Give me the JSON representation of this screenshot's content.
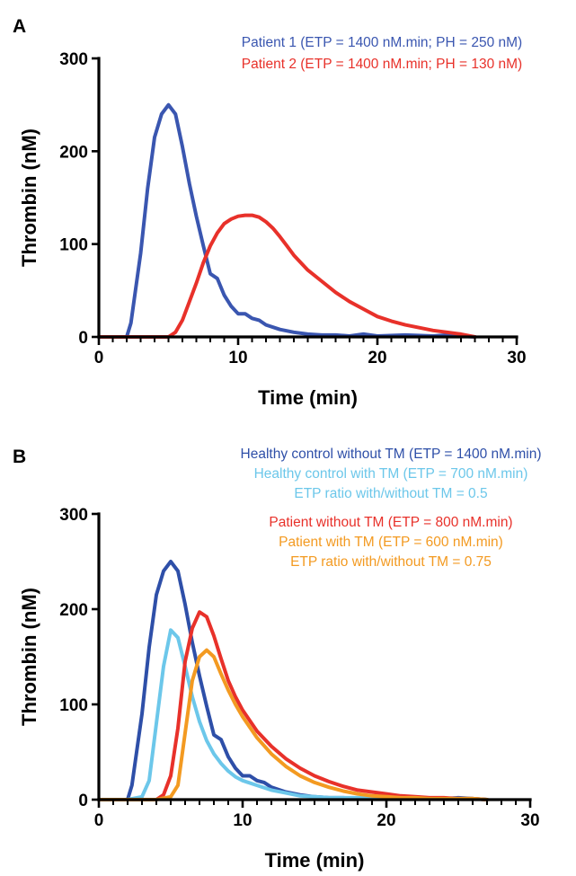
{
  "chart_data": [
    {
      "panel": "A",
      "type": "line",
      "xlabel": "Time (min)",
      "ylabel": "Thrombin (nM)",
      "xlim": [
        0,
        30
      ],
      "ylim": [
        0,
        300
      ],
      "xticks": [
        0,
        10,
        20,
        30
      ],
      "yticks": [
        0,
        100,
        200,
        300
      ],
      "legend": {
        "placement": "top-right",
        "entries": [
          {
            "text": "Patient 1 (ETP = 1400 nM.min; PH = 250 nM)",
            "color": "#3a56b0"
          },
          {
            "text": "Patient 2 (ETP = 1400 nM.min; PH = 130 nM)",
            "color": "#e8312a"
          }
        ]
      },
      "series": [
        {
          "color": "#3a56b0",
          "x": [
            0,
            1,
            2,
            2.3,
            3,
            3.5,
            4,
            4.5,
            5,
            5.5,
            6,
            6.5,
            7,
            7.5,
            8,
            8.5,
            9,
            9.5,
            10,
            10.5,
            11,
            11.5,
            12,
            13,
            14,
            15,
            16,
            17,
            18,
            19,
            20,
            22,
            24,
            25,
            26,
            27
          ],
          "y": [
            0,
            0,
            0,
            15,
            90,
            160,
            215,
            240,
            250,
            240,
            205,
            165,
            130,
            98,
            68,
            63,
            45,
            33,
            25,
            25,
            20,
            18,
            13,
            8,
            5,
            3,
            2,
            2,
            1,
            3,
            1,
            2,
            1,
            2,
            1,
            0
          ]
        },
        {
          "color": "#e8312a",
          "x": [
            0,
            2,
            4,
            5,
            5.5,
            6,
            6.5,
            7,
            7.5,
            8,
            8.5,
            9,
            9.5,
            10,
            10.5,
            11,
            11.5,
            12,
            12.5,
            13,
            13.5,
            14,
            15,
            16,
            17,
            18,
            19,
            20,
            21,
            22,
            23,
            24,
            25,
            26,
            27
          ],
          "y": [
            0,
            0,
            0,
            0,
            5,
            18,
            38,
            58,
            80,
            98,
            112,
            122,
            127,
            130,
            131,
            131,
            129,
            124,
            117,
            108,
            98,
            88,
            72,
            60,
            48,
            38,
            30,
            22,
            17,
            13,
            10,
            7,
            5,
            3,
            0
          ]
        }
      ]
    },
    {
      "panel": "B",
      "type": "line",
      "xlabel": "Time (min)",
      "ylabel": "Thrombin (nM)",
      "xlim": [
        0,
        30
      ],
      "ylim": [
        0,
        300
      ],
      "xticks": [
        0,
        10,
        20,
        30
      ],
      "yticks": [
        0,
        100,
        200,
        300
      ],
      "legend": {
        "placement": "top-right",
        "entries": [
          {
            "text": "Healthy control without TM (ETP = 1400 nM.min)",
            "color": "#2e4fa8"
          },
          {
            "text": "Healthy control with TM (ETP = 700 nM.min)",
            "color": "#6cc7ea"
          },
          {
            "text": "ETP ratio with/without TM = 0.5",
            "color": "#6cc7ea"
          },
          {
            "text": "Patient without TM (ETP = 800 nM.min)",
            "color": "#e8312a"
          },
          {
            "text": "Patient with TM (ETP = 600 nM.min)",
            "color": "#f39a21"
          },
          {
            "text": "ETP ratio with/without TM = 0.75",
            "color": "#f39a21"
          }
        ]
      },
      "series": [
        {
          "color": "#2e4fa8",
          "x": [
            0,
            1,
            2,
            2.3,
            3,
            3.5,
            4,
            4.5,
            5,
            5.5,
            6,
            6.5,
            7,
            7.5,
            8,
            8.5,
            9,
            9.5,
            10,
            10.5,
            11,
            11.5,
            12,
            13,
            14,
            15,
            16,
            17,
            18,
            19,
            20,
            22,
            24,
            25,
            26,
            27
          ],
          "y": [
            0,
            0,
            0,
            15,
            90,
            160,
            215,
            240,
            250,
            240,
            205,
            165,
            130,
            98,
            68,
            63,
            45,
            33,
            25,
            25,
            20,
            18,
            13,
            8,
            5,
            3,
            2,
            2,
            1,
            3,
            1,
            2,
            1,
            2,
            1,
            0
          ]
        },
        {
          "color": "#6cc7ea",
          "x": [
            0,
            2,
            3,
            3.5,
            4,
            4.5,
            5,
            5.5,
            6,
            6.5,
            7,
            7.5,
            8,
            8.5,
            9,
            9.5,
            10,
            11,
            12,
            13,
            14,
            15,
            16,
            18,
            20,
            22,
            24,
            26,
            27
          ],
          "y": [
            0,
            0,
            3,
            20,
            80,
            140,
            178,
            170,
            140,
            108,
            82,
            62,
            48,
            38,
            30,
            24,
            20,
            15,
            10,
            7,
            4,
            3,
            2,
            2,
            1,
            1,
            1,
            1,
            0
          ]
        },
        {
          "color": "#e8312a",
          "x": [
            0,
            2,
            4,
            4.5,
            5,
            5.5,
            6,
            6.5,
            7,
            7.5,
            8,
            8.5,
            9,
            9.5,
            10,
            11,
            12,
            13,
            14,
            15,
            16,
            17,
            18,
            19,
            20,
            21,
            22,
            23,
            24,
            25,
            26,
            27
          ],
          "y": [
            0,
            0,
            0,
            5,
            25,
            75,
            145,
            180,
            197,
            192,
            172,
            148,
            125,
            108,
            94,
            72,
            56,
            43,
            33,
            25,
            19,
            14,
            10,
            8,
            6,
            4,
            3,
            2,
            2,
            1,
            1,
            0
          ]
        },
        {
          "color": "#f39a21",
          "x": [
            0,
            2,
            4,
            5,
            5.5,
            6,
            6.5,
            7,
            7.5,
            8,
            8.5,
            9,
            9.5,
            10,
            11,
            12,
            13,
            14,
            15,
            16,
            17,
            18,
            19,
            20,
            21,
            22,
            23,
            24,
            25,
            26,
            27
          ],
          "y": [
            0,
            0,
            0,
            3,
            15,
            70,
            125,
            150,
            157,
            150,
            132,
            115,
            100,
            87,
            65,
            48,
            35,
            25,
            18,
            13,
            9,
            6,
            4,
            3,
            2,
            2,
            1,
            1,
            1,
            1,
            0
          ]
        }
      ]
    }
  ]
}
